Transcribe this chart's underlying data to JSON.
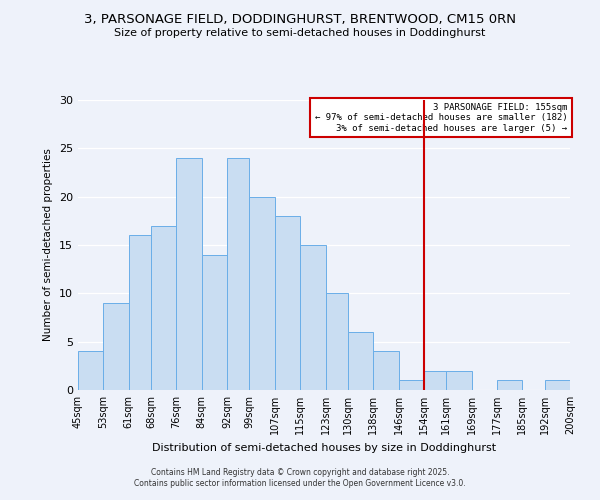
{
  "title1": "3, PARSONAGE FIELD, DODDINGHURST, BRENTWOOD, CM15 0RN",
  "title2": "Size of property relative to semi-detached houses in Doddinghurst",
  "xlabel": "Distribution of semi-detached houses by size in Doddinghurst",
  "ylabel": "Number of semi-detached properties",
  "bin_labels": [
    "45sqm",
    "53sqm",
    "61sqm",
    "68sqm",
    "76sqm",
    "84sqm",
    "92sqm",
    "99sqm",
    "107sqm",
    "115sqm",
    "123sqm",
    "130sqm",
    "138sqm",
    "146sqm",
    "154sqm",
    "161sqm",
    "169sqm",
    "177sqm",
    "185sqm",
    "192sqm",
    "200sqm"
  ],
  "bin_edges": [
    45,
    53,
    61,
    68,
    76,
    84,
    92,
    99,
    107,
    115,
    123,
    130,
    138,
    146,
    154,
    161,
    169,
    177,
    185,
    192,
    200
  ],
  "counts": [
    4,
    9,
    16,
    17,
    24,
    14,
    24,
    20,
    18,
    15,
    10,
    6,
    4,
    1,
    2,
    2,
    0,
    1,
    0,
    1
  ],
  "bar_color": "#c9ddf2",
  "bar_edge_color": "#6aaee8",
  "vline_x": 154,
  "vline_color": "#cc0000",
  "annotation_title": "3 PARSONAGE FIELD: 155sqm",
  "annotation_line1": "← 97% of semi-detached houses are smaller (182)",
  "annotation_line2": "3% of semi-detached houses are larger (5) →",
  "annotation_box_color": "#ffffff",
  "annotation_box_edge": "#cc0000",
  "ylim": [
    0,
    30
  ],
  "yticks": [
    0,
    5,
    10,
    15,
    20,
    25,
    30
  ],
  "background_color": "#eef2fa",
  "grid_color": "#ffffff",
  "footer1": "Contains HM Land Registry data © Crown copyright and database right 2025.",
  "footer2": "Contains public sector information licensed under the Open Government Licence v3.0."
}
